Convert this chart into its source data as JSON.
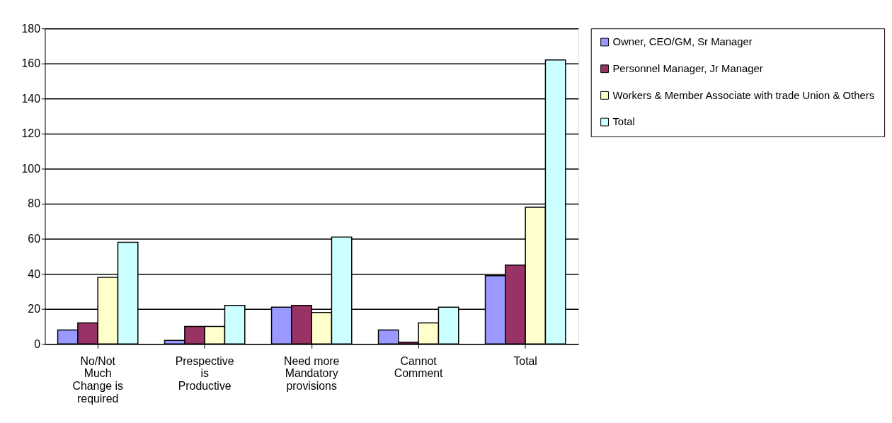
{
  "chart_data": {
    "type": "bar",
    "categories": [
      "No/Not Much Change is required",
      "Prespective is Productive",
      "Need more Mandatory provisions",
      "Cannot Comment",
      "Total"
    ],
    "series": [
      {
        "name": "Owner, CEO/GM, Sr Manager",
        "color": "#9999ff",
        "values": [
          8,
          2,
          21,
          8,
          39
        ]
      },
      {
        "name": "Personnel Manager, Jr Manager",
        "color": "#993366",
        "values": [
          12,
          10,
          22,
          1,
          45
        ]
      },
      {
        "name": "Workers & Member Associate with trade Union & Others",
        "color": "#ffffcc",
        "values": [
          38,
          10,
          18,
          12,
          78
        ]
      },
      {
        "name": "Total",
        "color": "#ccffff",
        "values": [
          58,
          22,
          61,
          21,
          162
        ]
      }
    ],
    "ylim": [
      0,
      180
    ],
    "yticks": [
      0,
      20,
      40,
      60,
      80,
      100,
      120,
      140,
      160,
      180
    ],
    "grid": "y",
    "legend": "right"
  }
}
